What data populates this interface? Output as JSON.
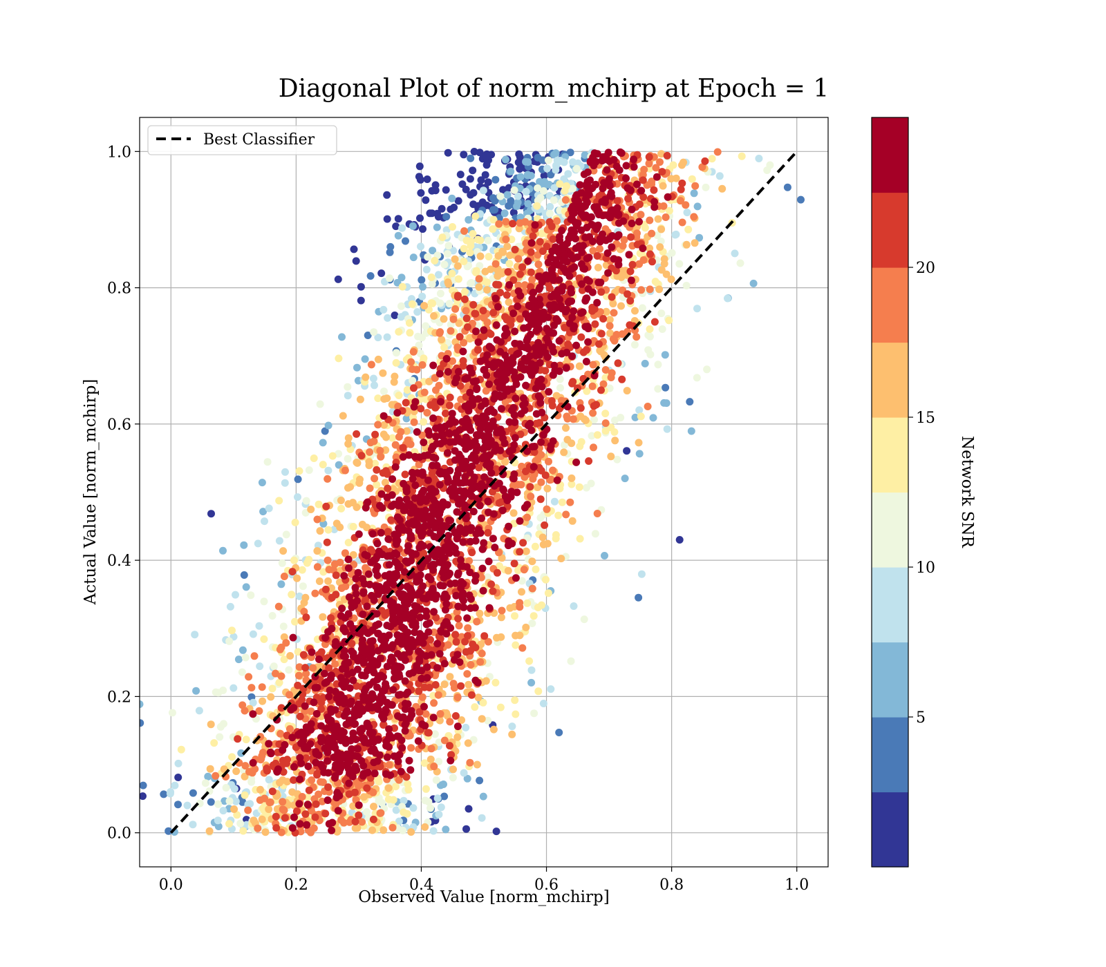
{
  "chart_data": {
    "type": "scatter",
    "title": "Diagonal Plot of norm_mchirp at Epoch = 1",
    "xlabel": "Observed Value [norm_mchirp]",
    "ylabel": "Actual Value [norm_mchirp]",
    "xlim": [
      -0.05,
      1.05
    ],
    "ylim": [
      -0.05,
      1.05
    ],
    "x_ticks": [
      "0.0",
      "0.2",
      "0.4",
      "0.6",
      "0.8",
      "1.0"
    ],
    "y_ticks": [
      "0.0",
      "0.2",
      "0.4",
      "0.6",
      "0.8",
      "1.0"
    ],
    "grid": true,
    "legend": {
      "position": "top-left",
      "entries": [
        {
          "label": "Best Classifier",
          "style": "dashed",
          "color": "#000000"
        }
      ]
    },
    "reference_line": {
      "label": "Best Classifier",
      "x": [
        0.0,
        1.0
      ],
      "y": [
        0.0,
        1.0
      ]
    },
    "colorbar": {
      "label": "Network SNR",
      "range": [
        0,
        25
      ],
      "ticks": [
        "5",
        "10",
        "15",
        "20"
      ],
      "tick_values": [
        5,
        10,
        15,
        20
      ],
      "band_colors": [
        "#313695",
        "#4a7ab7",
        "#83b8d7",
        "#c0e2ed",
        "#eef7df",
        "#feefa4",
        "#fdbf6f",
        "#f57e4e",
        "#d73a2d",
        "#a50026"
      ]
    },
    "scatter_summary": {
      "approx_point_density": "very dense",
      "band_low_edge": [
        [
          0.12,
          0.0
        ],
        [
          0.2,
          0.0
        ],
        [
          0.4,
          0.0
        ],
        [
          0.5,
          0.0
        ],
        [
          0.6,
          0.2
        ],
        [
          0.72,
          0.4
        ],
        [
          0.82,
          0.7
        ],
        [
          0.84,
          0.9
        ]
      ],
      "band_high_edge": [
        [
          0.12,
          0.2
        ],
        [
          0.18,
          0.4
        ],
        [
          0.25,
          0.6
        ],
        [
          0.32,
          0.8
        ],
        [
          0.38,
          1.0
        ],
        [
          0.8,
          1.0
        ]
      ],
      "color_trend": "low SNR (blue/yellow) at upper-left and bottom edges; high SNR (dark red) dominates the core along the diagonal"
    }
  }
}
